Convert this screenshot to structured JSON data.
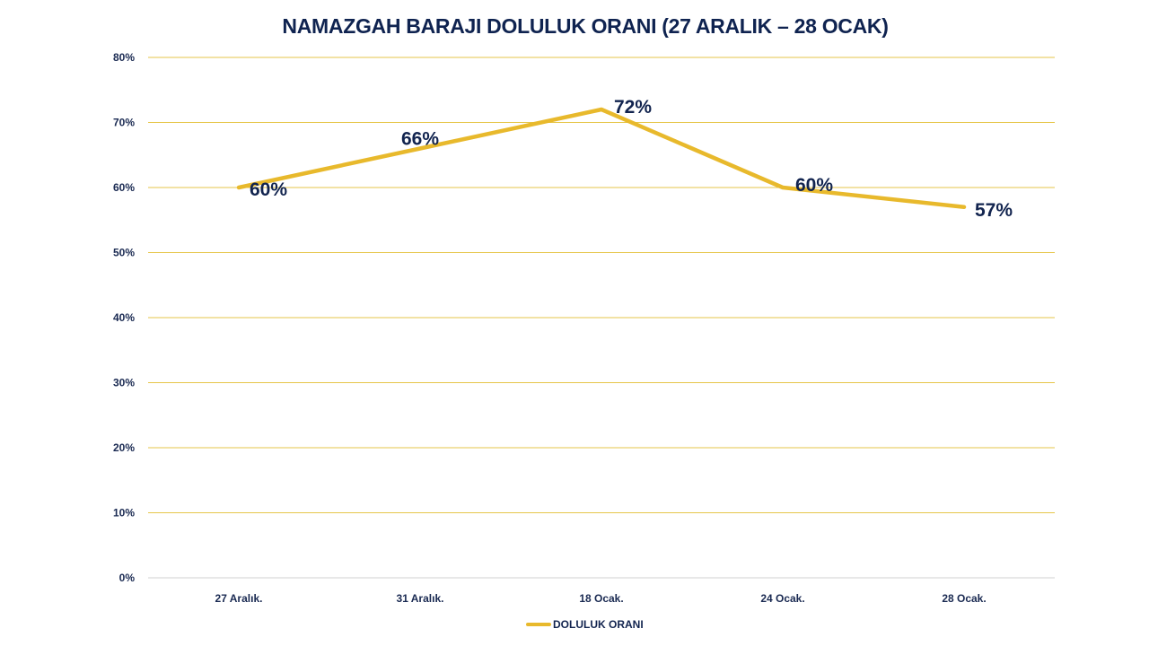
{
  "title": "NAMAZGAH BARAJI DOLULUK ORANI (27 ARALIK – 28 OCAK)",
  "legend": {
    "label": "DOLULUK ORANI"
  },
  "y_ticks": [
    "80%",
    "70%",
    "60%",
    "50%",
    "40%",
    "30%",
    "20%",
    "10%",
    "0%"
  ],
  "x_ticks": [
    "27 Aralık.",
    "31 Aralık.",
    "18 Ocak.",
    "24 Ocak.",
    "28 Ocak."
  ],
  "data_labels": [
    "60%",
    "66%",
    "72%",
    "60%",
    "57%"
  ],
  "colors": {
    "line": "#e8b92c",
    "grid": "#e6c64a",
    "text": "#0f2350",
    "axis": "#d0d0d0"
  },
  "chart_data": {
    "type": "line",
    "title": "NAMAZGAH BARAJI DOLULUK ORANI (27 ARALIK – 28 OCAK)",
    "categories": [
      "27 Aralık.",
      "31 Aralık.",
      "18 Ocak.",
      "24 Ocak.",
      "28 Ocak."
    ],
    "series": [
      {
        "name": "DOLULUK ORANI",
        "values": [
          60,
          66,
          72,
          60,
          57
        ],
        "color": "#e8b92c"
      }
    ],
    "xlabel": "",
    "ylabel": "",
    "ylim": [
      0,
      80
    ],
    "y_tick_step": 10,
    "y_format": "percent",
    "grid": true,
    "legend_position": "bottom",
    "data_labels": true
  }
}
